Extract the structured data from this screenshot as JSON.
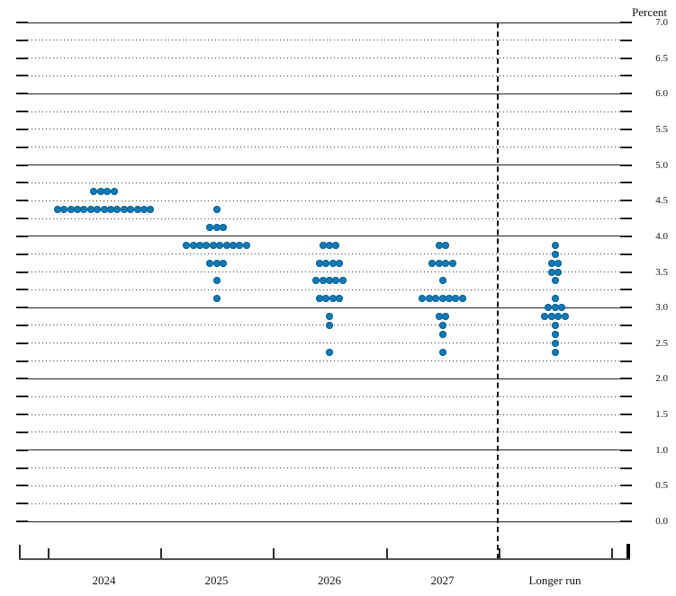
{
  "y_axis": {
    "title": "Percent",
    "tick_labels": [
      "7.0",
      "6.5",
      "6.0",
      "5.5",
      "5.0",
      "4.5",
      "4.0",
      "3.5",
      "3.0",
      "2.5",
      "2.0",
      "1.5",
      "1.0",
      "0.5",
      "0.0"
    ]
  },
  "x_axis": {
    "categories": [
      "2024",
      "2025",
      "2026",
      "2027",
      "Longer run"
    ]
  },
  "colors": {
    "dot": "#1179b3",
    "grid": "#1f1f1f"
  },
  "chart_data": {
    "type": "scatter",
    "title": "",
    "ylabel": "Percent",
    "xlabel": "",
    "ylim": [
      0.0,
      7.0
    ],
    "y_tick_step": 0.5,
    "gridlines": {
      "solid_every": 1.0,
      "dotted_every": 0.25,
      "grid_on": true
    },
    "legend_position": "none",
    "categories": [
      "2024",
      "2025",
      "2026",
      "2027",
      "Longer run"
    ],
    "separator_after_index": 3,
    "dot_color": "#1179b3",
    "series": [
      {
        "name": "2024",
        "dots": [
          {
            "rate": 4.625,
            "count": 4
          },
          {
            "rate": 4.375,
            "count": 15
          }
        ]
      },
      {
        "name": "2025",
        "dots": [
          {
            "rate": 4.375,
            "count": 1
          },
          {
            "rate": 4.125,
            "count": 3
          },
          {
            "rate": 3.875,
            "count": 10
          },
          {
            "rate": 3.625,
            "count": 3
          },
          {
            "rate": 3.375,
            "count": 1
          },
          {
            "rate": 3.125,
            "count": 1
          }
        ]
      },
      {
        "name": "2026",
        "dots": [
          {
            "rate": 3.875,
            "count": 3
          },
          {
            "rate": 3.625,
            "count": 4
          },
          {
            "rate": 3.375,
            "count": 5
          },
          {
            "rate": 3.125,
            "count": 4
          },
          {
            "rate": 2.875,
            "count": 1
          },
          {
            "rate": 2.75,
            "count": 1
          },
          {
            "rate": 2.375,
            "count": 1
          }
        ]
      },
      {
        "name": "2027",
        "dots": [
          {
            "rate": 3.875,
            "count": 2
          },
          {
            "rate": 3.625,
            "count": 4
          },
          {
            "rate": 3.375,
            "count": 1
          },
          {
            "rate": 3.125,
            "count": 7
          },
          {
            "rate": 2.875,
            "count": 2
          },
          {
            "rate": 2.75,
            "count": 1
          },
          {
            "rate": 2.625,
            "count": 1
          },
          {
            "rate": 2.375,
            "count": 1
          }
        ]
      },
      {
        "name": "Longer run",
        "dots": [
          {
            "rate": 3.875,
            "count": 1
          },
          {
            "rate": 3.75,
            "count": 1
          },
          {
            "rate": 3.625,
            "count": 2
          },
          {
            "rate": 3.5,
            "count": 2
          },
          {
            "rate": 3.375,
            "count": 1
          },
          {
            "rate": 3.125,
            "count": 1
          },
          {
            "rate": 3.0,
            "count": 3
          },
          {
            "rate": 2.875,
            "count": 4
          },
          {
            "rate": 2.75,
            "count": 1
          },
          {
            "rate": 2.625,
            "count": 1
          },
          {
            "rate": 2.5,
            "count": 1
          },
          {
            "rate": 2.375,
            "count": 1
          }
        ]
      }
    ]
  }
}
